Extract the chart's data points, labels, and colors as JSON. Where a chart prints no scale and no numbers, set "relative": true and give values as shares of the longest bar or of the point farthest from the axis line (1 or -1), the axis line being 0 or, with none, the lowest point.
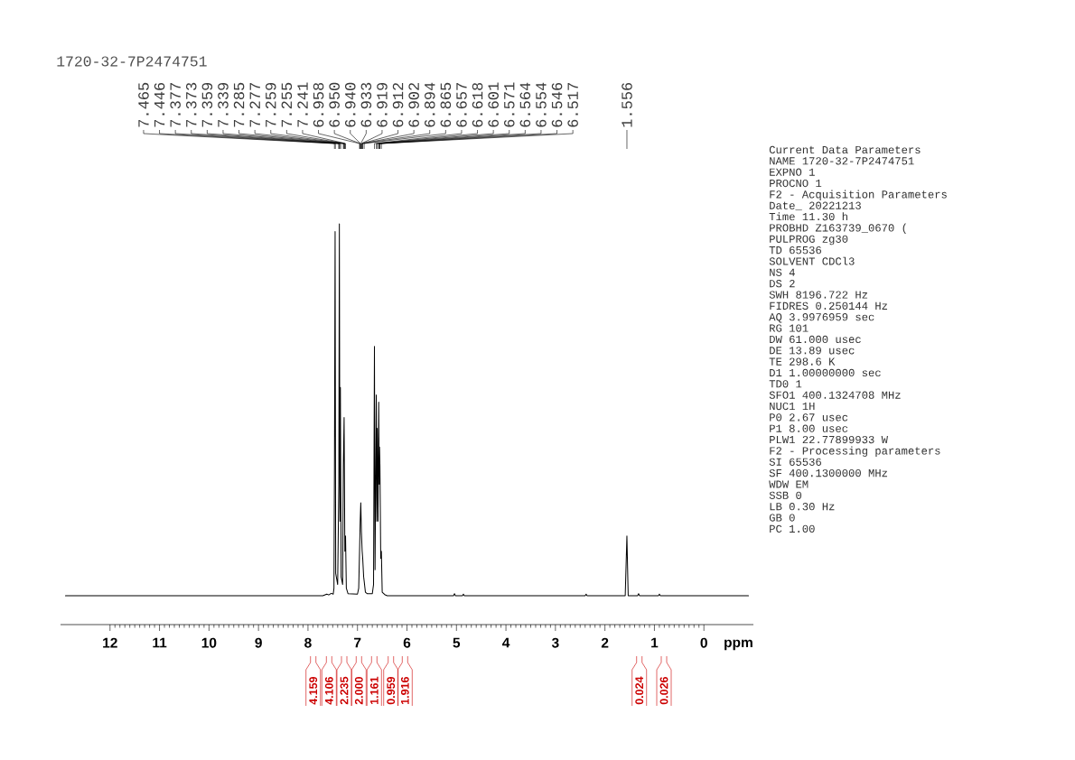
{
  "chart_data": {
    "type": "line",
    "relative": true,
    "title": "1720-32-7P2474751",
    "xlabel": "ppm",
    "color": "#000000",
    "xlim": [
      13,
      -1
    ],
    "xticks": [
      12,
      11,
      10,
      9,
      8,
      7,
      6,
      5,
      4,
      3,
      2,
      1,
      0
    ],
    "x": [
      12.9,
      7.7,
      7.62,
      7.58,
      7.53,
      7.49,
      7.475,
      7.465,
      7.452,
      7.44,
      7.4,
      7.377,
      7.366,
      7.355,
      7.345,
      7.33,
      7.3,
      7.285,
      7.27,
      7.255,
      7.241,
      7.225,
      7.19,
      7.0,
      6.975,
      6.958,
      6.945,
      6.933,
      6.92,
      6.905,
      6.894,
      6.875,
      6.865,
      6.84,
      6.8,
      6.7,
      6.675,
      6.657,
      6.645,
      6.62,
      6.61,
      6.601,
      6.585,
      6.571,
      6.56,
      6.554,
      6.546,
      6.53,
      6.517,
      6.5,
      6.45,
      6.4,
      5.06,
      5.04,
      5.02,
      4.88,
      4.86,
      4.84,
      2.4,
      2.38,
      2.36,
      1.59,
      1.556,
      1.53,
      1.34,
      1.32,
      1.3,
      0.92,
      0.9,
      0.88,
      -0.9
    ],
    "values": [
      0.072,
      0.072,
      0.076,
      0.074,
      0.078,
      0.076,
      0.091,
      0.397,
      0.981,
      0.128,
      0.1,
      0.35,
      1.0,
      0.258,
      0.592,
      0.119,
      0.1,
      0.397,
      0.517,
      0.183,
      0.221,
      0.091,
      0.077,
      0.076,
      0.091,
      0.183,
      0.258,
      0.304,
      0.23,
      0.183,
      0.165,
      0.119,
      0.109,
      0.081,
      0.077,
      0.077,
      0.1,
      0.694,
      0.137,
      0.573,
      0.258,
      0.49,
      0.258,
      0.555,
      0.35,
      0.443,
      0.397,
      0.165,
      0.183,
      0.081,
      0.075,
      0.072,
      0.072,
      0.077,
      0.072,
      0.072,
      0.076,
      0.072,
      0.072,
      0.076,
      0.072,
      0.072,
      0.221,
      0.072,
      0.072,
      0.077,
      0.072,
      0.072,
      0.076,
      0.072,
      0.072
    ],
    "annotations": [
      "Current Data Parameters",
      "NAME 1720-32-7P2474751",
      "EXPNO 1",
      "PROCNO 1",
      "F2 - Acquisition Parameters",
      "Date_ 20221213",
      "Time 11.30 h",
      "PROBHD Z163739_0670 (",
      "PULPROG zg30",
      "TD 65536",
      "SOLVENT CDCl3",
      "NS 4",
      "DS 2",
      "SWH 8196.722 Hz",
      "FIDRES 0.250144 Hz",
      "AQ 3.9976959 sec",
      "RG 101",
      "DW 61.000 usec",
      "DE 13.89 usec",
      "TE 298.6 K",
      "D1 1.00000000 sec",
      "TD0 1",
      "SFO1 400.1324708 MHz",
      "NUC1 1H",
      "P0 2.67 usec",
      "P1 8.00 usec",
      "PLW1 22.77899933 W",
      "F2 - Processing parameters",
      "SI 65536",
      "SF 400.1300000 MHz",
      "WDW EM",
      "SSB 0",
      "LB 0.30 Hz",
      "GB 0",
      "PC 1.00",
      {
        "text": "7.465",
        "x": 7.465
      },
      {
        "text": "7.446",
        "x": 7.446
      },
      {
        "text": "7.377",
        "x": 7.377
      },
      {
        "text": "7.373",
        "x": 7.373
      },
      {
        "text": "7.359",
        "x": 7.359
      },
      {
        "text": "7.339",
        "x": 7.339
      },
      {
        "text": "7.285",
        "x": 7.285
      },
      {
        "text": "7.277",
        "x": 7.277
      },
      {
        "text": "7.259",
        "x": 7.259
      },
      {
        "text": "7.255",
        "x": 7.255
      },
      {
        "text": "7.241",
        "x": 7.241
      },
      {
        "text": "6.958",
        "x": 6.958
      },
      {
        "text": "6.950",
        "x": 6.95
      },
      {
        "text": "6.940",
        "x": 6.94
      },
      {
        "text": "6.933",
        "x": 6.933
      },
      {
        "text": "6.919",
        "x": 6.919
      },
      {
        "text": "6.912",
        "x": 6.912
      },
      {
        "text": "6.902",
        "x": 6.902
      },
      {
        "text": "6.894",
        "x": 6.894
      },
      {
        "text": "6.865",
        "x": 6.865
      },
      {
        "text": "6.657",
        "x": 6.657
      },
      {
        "text": "6.618",
        "x": 6.618
      },
      {
        "text": "6.601",
        "x": 6.601
      },
      {
        "text": "6.571",
        "x": 6.571
      },
      {
        "text": "6.564",
        "x": 6.564
      },
      {
        "text": "6.554",
        "x": 6.554
      },
      {
        "text": "6.546",
        "x": 6.546
      },
      {
        "text": "6.517",
        "x": 6.517
      },
      {
        "text": "1.556",
        "x": 1.556
      },
      "4.159",
      "4.106",
      "2.235",
      "2.000",
      "1.161",
      "0.959",
      "1.916",
      "0.024",
      "0.026"
    ]
  }
}
